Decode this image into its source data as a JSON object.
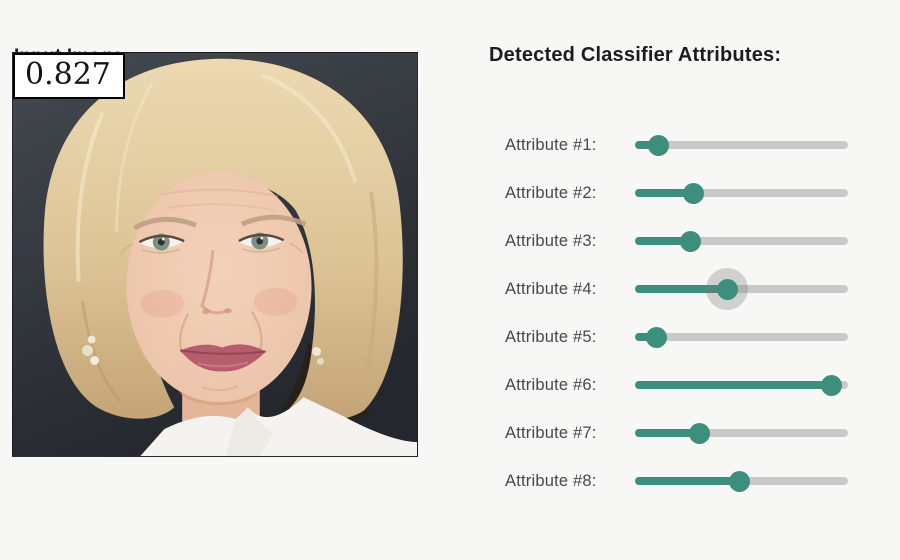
{
  "left_panel": {
    "title": "Input Image:",
    "score": "0.827",
    "image_description": "portrait of an older woman with short blonde hair, white shirt, dark studio background"
  },
  "right_panel": {
    "title": "Detected Classifier Attributes:",
    "sliders": [
      {
        "label": "Attribute #1:",
        "value": 0.11,
        "active": false
      },
      {
        "label": "Attribute #2:",
        "value": 0.27,
        "active": false
      },
      {
        "label": "Attribute #3:",
        "value": 0.26,
        "active": false
      },
      {
        "label": "Attribute #4:",
        "value": 0.43,
        "active": true
      },
      {
        "label": "Attribute #5:",
        "value": 0.1,
        "active": false
      },
      {
        "label": "Attribute #6:",
        "value": 0.92,
        "active": false
      },
      {
        "label": "Attribute #7:",
        "value": 0.3,
        "active": false
      },
      {
        "label": "Attribute #8:",
        "value": 0.49,
        "active": false
      }
    ]
  },
  "colors": {
    "accent": "#3e8e7d",
    "track": "#c9c9c9",
    "page_background": "#f7f7f6",
    "photo_background": "#33373e"
  }
}
